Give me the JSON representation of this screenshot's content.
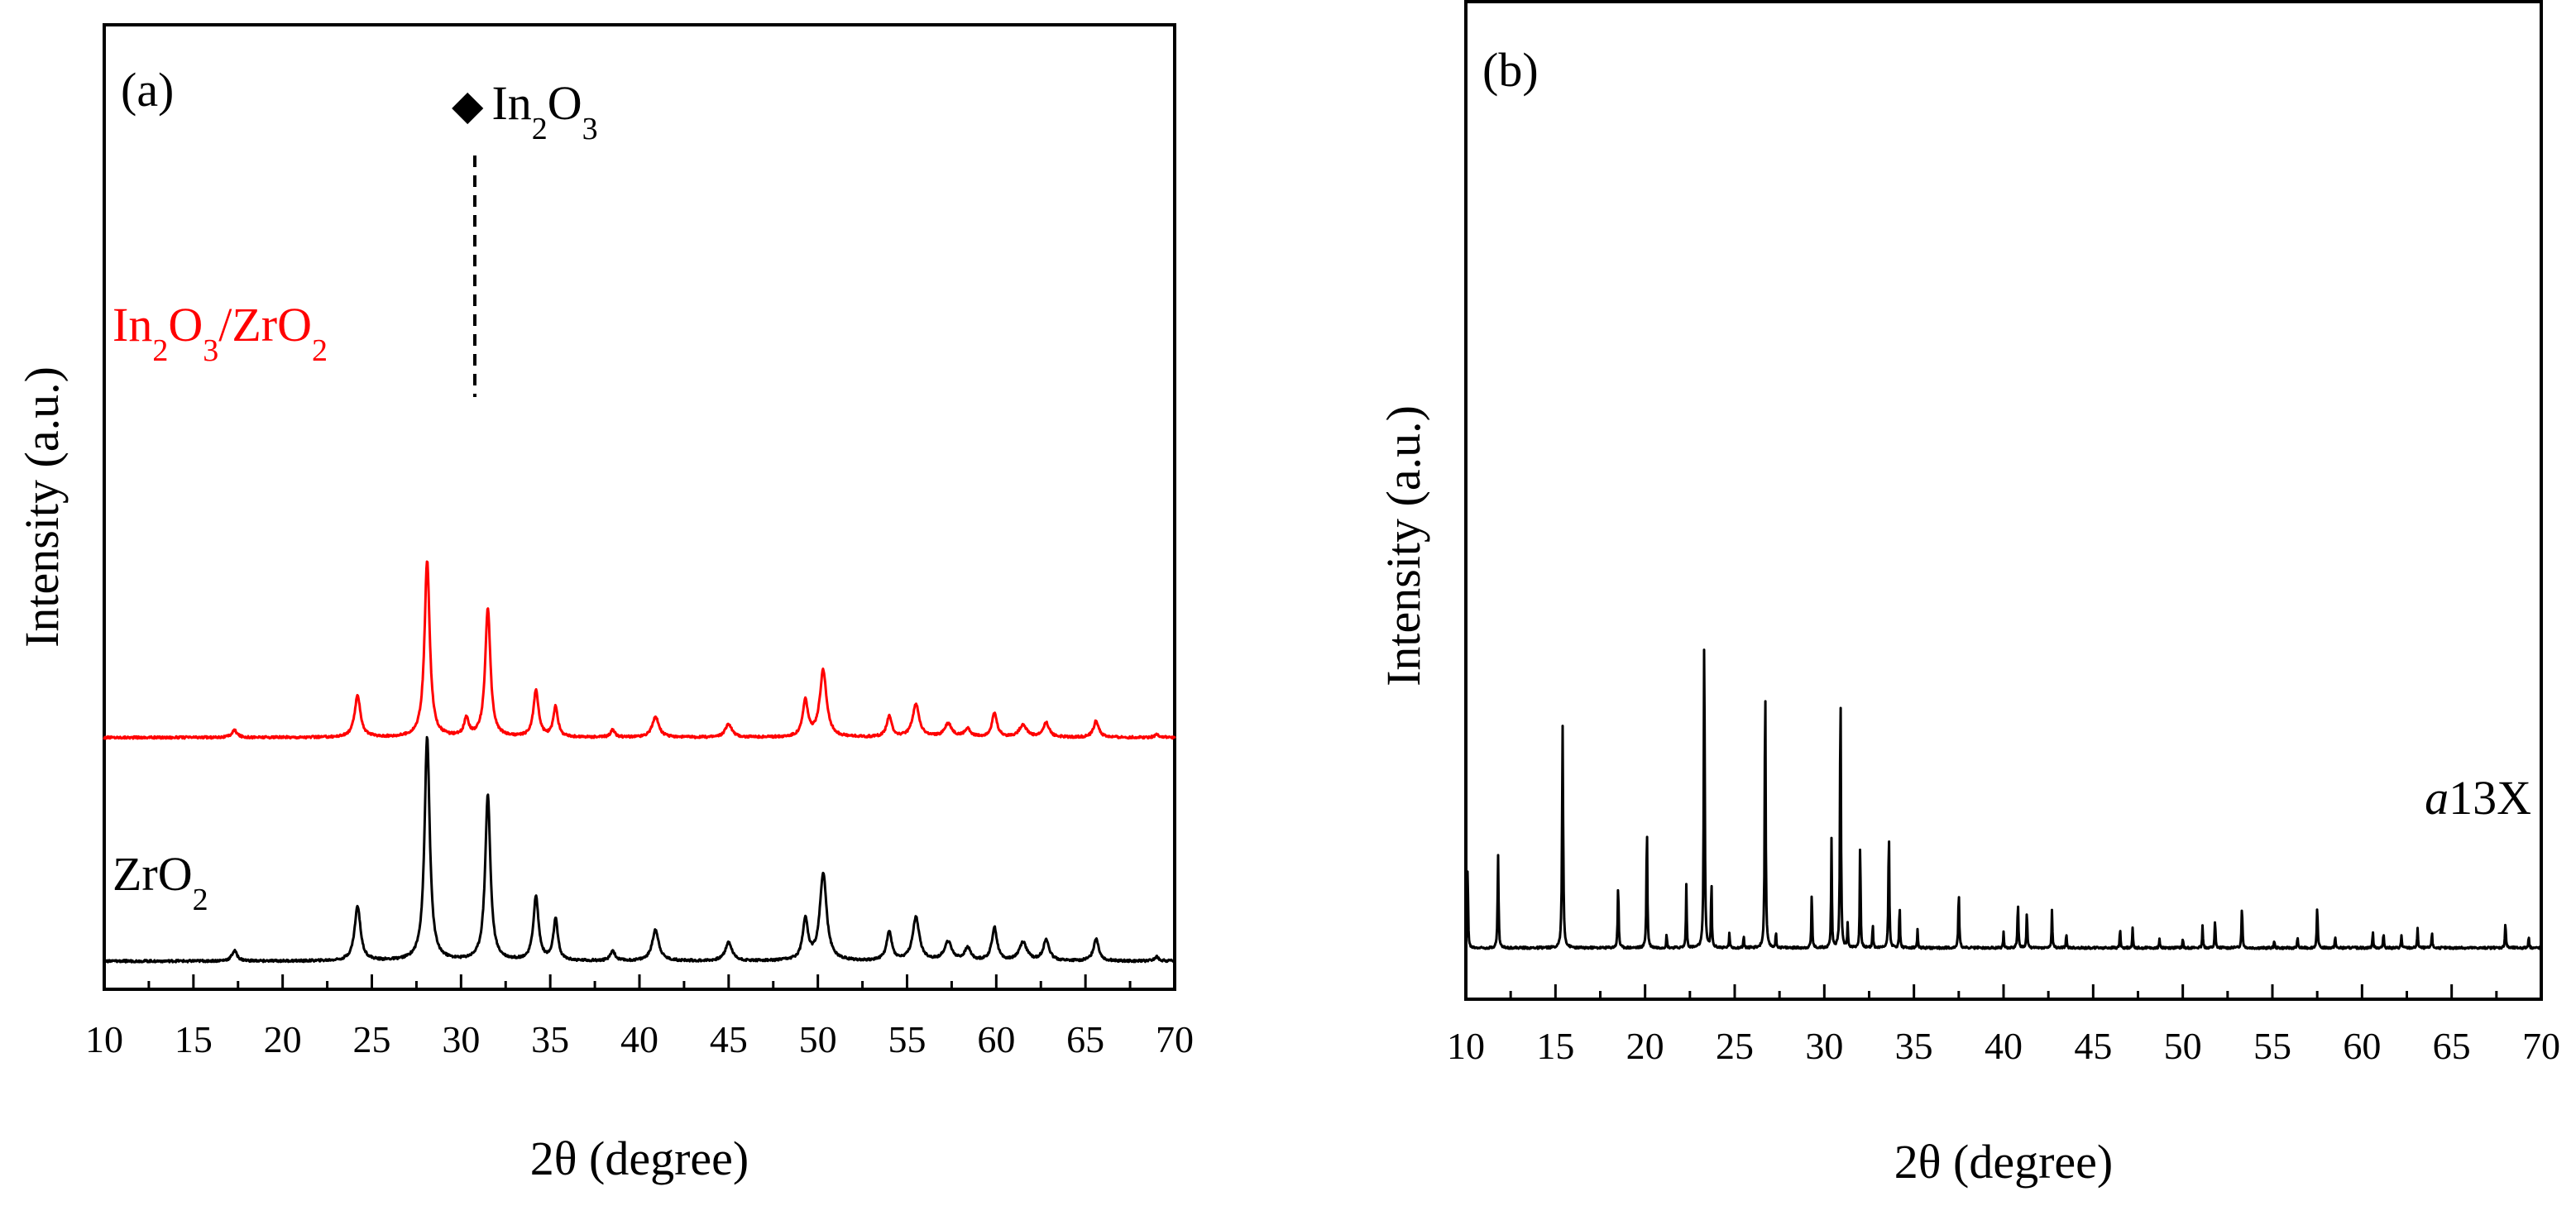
{
  "chart_data": [
    {
      "type": "line",
      "panel_label": "(a)",
      "xlabel": "2θ (degree)",
      "ylabel": "Intensity (a.u.)",
      "xlim": [
        10,
        70
      ],
      "ylim": [
        0,
        400
      ],
      "x_ticks": [
        10,
        15,
        20,
        25,
        30,
        35,
        40,
        45,
        50,
        55,
        60,
        65,
        70
      ],
      "y_ticks_visible": false,
      "marker_annotation": {
        "symbol": "◆",
        "formula": "In2O3",
        "parts": [
          "In",
          "2",
          "O",
          "3"
        ],
        "x": 30.5
      },
      "series": [
        {
          "name": "In2O3/ZrO2",
          "label_parts": [
            "In",
            "2",
            "O",
            "3",
            "/ZrO",
            "2"
          ],
          "color": "#ff0000",
          "offset": 218,
          "baseline": 2,
          "peaks": [
            [
              17.3,
              7,
              0.35
            ],
            [
              24.2,
              40,
              0.4
            ],
            [
              28.1,
              172,
              0.35
            ],
            [
              30.3,
              18,
              0.3
            ],
            [
              31.5,
              126,
              0.35
            ],
            [
              34.2,
              45,
              0.35
            ],
            [
              35.3,
              30,
              0.3
            ],
            [
              38.5,
              7,
              0.3
            ],
            [
              40.9,
              20,
              0.45
            ],
            [
              45.0,
              13,
              0.45
            ],
            [
              49.3,
              35,
              0.35
            ],
            [
              50.3,
              65,
              0.45
            ],
            [
              54.0,
              20,
              0.35
            ],
            [
              55.5,
              32,
              0.45
            ],
            [
              57.3,
              13,
              0.5
            ],
            [
              58.4,
              8,
              0.4
            ],
            [
              59.9,
              23,
              0.35
            ],
            [
              61.5,
              12,
              0.5
            ],
            [
              62.8,
              14,
              0.4
            ],
            [
              65.6,
              16,
              0.35
            ],
            [
              69.0,
              3,
              0.3
            ]
          ]
        },
        {
          "name": "ZrO2",
          "label_parts": [
            "ZrO",
            "2"
          ],
          "color": "#000000",
          "offset": 0,
          "baseline": 14,
          "peaks": [
            [
              17.3,
              10,
              0.35
            ],
            [
              24.2,
              53,
              0.4
            ],
            [
              28.1,
              218,
              0.35
            ],
            [
              31.5,
              162,
              0.35
            ],
            [
              34.2,
              62,
              0.35
            ],
            [
              35.3,
              40,
              0.3
            ],
            [
              38.5,
              10,
              0.3
            ],
            [
              40.9,
              30,
              0.45
            ],
            [
              45.0,
              18,
              0.45
            ],
            [
              49.3,
              40,
              0.35
            ],
            [
              50.3,
              85,
              0.45
            ],
            [
              54.0,
              28,
              0.35
            ],
            [
              55.5,
              42,
              0.45
            ],
            [
              57.3,
              18,
              0.5
            ],
            [
              58.4,
              12,
              0.4
            ],
            [
              59.9,
              32,
              0.35
            ],
            [
              61.5,
              18,
              0.5
            ],
            [
              62.8,
              20,
              0.4
            ],
            [
              65.6,
              22,
              0.35
            ],
            [
              69.0,
              4,
              0.3
            ]
          ]
        }
      ]
    },
    {
      "type": "line",
      "panel_label": "(b)",
      "xlabel": "2θ (degree)",
      "ylabel": "Intensity (a.u.)",
      "xlim": [
        10,
        70
      ],
      "ylim": [
        0,
        600
      ],
      "x_ticks": [
        10,
        15,
        20,
        25,
        30,
        35,
        40,
        45,
        50,
        55,
        60,
        65,
        70
      ],
      "y_ticks_visible": false,
      "series": [
        {
          "name": "a13X",
          "label_italic": "a",
          "label_rest": "13X",
          "color": "#000000",
          "offset": 0,
          "baseline": 70,
          "peaks": [
            [
              10.1,
              90,
              0.05
            ],
            [
              11.8,
              95,
              0.06
            ],
            [
              15.4,
              225,
              0.07
            ],
            [
              18.5,
              65,
              0.06
            ],
            [
              20.1,
              125,
              0.06
            ],
            [
              21.2,
              14,
              0.05
            ],
            [
              22.3,
              65,
              0.05
            ],
            [
              23.3,
              335,
              0.06
            ],
            [
              23.7,
              70,
              0.05
            ],
            [
              24.7,
              15,
              0.05
            ],
            [
              25.5,
              12,
              0.05
            ],
            [
              26.7,
              278,
              0.06
            ],
            [
              27.3,
              16,
              0.05
            ],
            [
              29.3,
              60,
              0.05
            ],
            [
              30.4,
              110,
              0.05
            ],
            [
              30.9,
              270,
              0.06
            ],
            [
              31.3,
              25,
              0.05
            ],
            [
              32.0,
              115,
              0.05
            ],
            [
              32.7,
              25,
              0.05
            ],
            [
              33.6,
              120,
              0.06
            ],
            [
              34.2,
              45,
              0.05
            ],
            [
              35.2,
              18,
              0.05
            ],
            [
              37.5,
              58,
              0.06
            ],
            [
              40.0,
              16,
              0.05
            ],
            [
              40.8,
              46,
              0.06
            ],
            [
              41.3,
              40,
              0.05
            ],
            [
              42.7,
              38,
              0.05
            ],
            [
              43.5,
              14,
              0.05
            ],
            [
              46.5,
              20,
              0.05
            ],
            [
              47.2,
              20,
              0.05
            ],
            [
              48.7,
              10,
              0.05
            ],
            [
              50.0,
              10,
              0.05
            ],
            [
              51.1,
              22,
              0.05
            ],
            [
              51.8,
              30,
              0.05
            ],
            [
              53.3,
              43,
              0.06
            ],
            [
              55.1,
              8,
              0.05
            ],
            [
              56.4,
              10,
              0.05
            ],
            [
              57.5,
              42,
              0.06
            ],
            [
              58.5,
              12,
              0.05
            ],
            [
              60.6,
              17,
              0.05
            ],
            [
              61.2,
              16,
              0.05
            ],
            [
              62.2,
              13,
              0.05
            ],
            [
              63.1,
              21,
              0.05
            ],
            [
              63.9,
              17,
              0.05
            ],
            [
              68.0,
              26,
              0.06
            ],
            [
              69.3,
              13,
              0.05
            ]
          ]
        }
      ]
    }
  ]
}
